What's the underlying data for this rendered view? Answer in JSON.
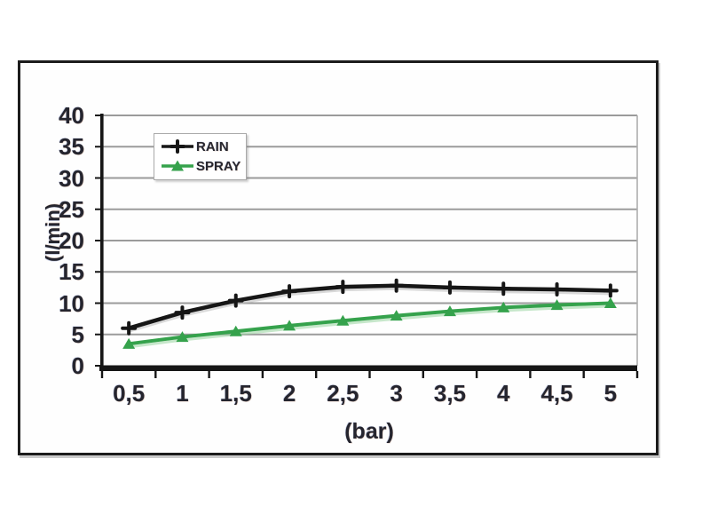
{
  "figure": {
    "background": "#ffffff",
    "border_color": "#1c1c1c"
  },
  "colors": {
    "gridline": "#9b9b9b",
    "axis": "#161616",
    "plot_right_border": "#aeaeae",
    "text": "#25252e",
    "legend_border": "#a9a9a9",
    "legend_background": "#ffffff"
  },
  "chart_data": {
    "type": "line",
    "title": "",
    "xlabel": "(bar)",
    "ylabel": "(l/min)",
    "x_categories": [
      "0,5",
      "1",
      "1,5",
      "2",
      "2,5",
      "3",
      "3,5",
      "4",
      "4,5",
      "5"
    ],
    "y_tick_labels": [
      "0",
      "5",
      "10",
      "15",
      "20",
      "25",
      "30",
      "35",
      "40"
    ],
    "ylim": [
      0,
      40
    ],
    "ytick_step": 5,
    "grid": "horizontal",
    "legend_position": "top-left-inside",
    "series": [
      {
        "name": "RAIN",
        "color": "#161616",
        "glow": "#b9b9b9",
        "marker": "plus",
        "line_width": 4.5,
        "values": [
          6.0,
          8.5,
          10.4,
          11.9,
          12.6,
          12.8,
          12.5,
          12.3,
          12.2,
          12.0
        ]
      },
      {
        "name": "SPRAY",
        "color": "#35a24c",
        "glow": "#98d49f",
        "marker": "triangle",
        "line_width": 4,
        "values": [
          3.5,
          4.6,
          5.5,
          6.4,
          7.2,
          8.0,
          8.7,
          9.3,
          9.7,
          10.0
        ]
      }
    ]
  }
}
